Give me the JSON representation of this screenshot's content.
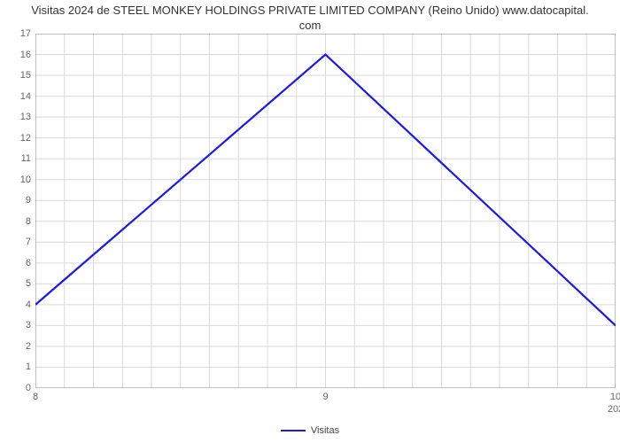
{
  "title_line1": "Visitas 2024 de STEEL MONKEY HOLDINGS PRIVATE LIMITED COMPANY (Reino Unido) www.datocapital.",
  "title_line2": "com",
  "chart": {
    "type": "line",
    "series": {
      "name": "Visitas",
      "color": "#1a1aee",
      "line_width": 2.2,
      "x": [
        8,
        9,
        10
      ],
      "y": [
        4,
        16,
        3
      ]
    },
    "y_axis": {
      "min": 0,
      "max": 17,
      "step": 1,
      "ticks": [
        0,
        1,
        2,
        3,
        4,
        5,
        6,
        7,
        8,
        9,
        10,
        11,
        12,
        13,
        14,
        15,
        16,
        17
      ],
      "grid_color": "#d9d9d9",
      "label_color": "#666666",
      "label_fontsize": 11
    },
    "x_axis": {
      "min": 8,
      "max": 10,
      "ticks": [
        8,
        9,
        10
      ],
      "sublabel_right": "202",
      "minor_grid_count_between": 10,
      "grid_color": "#d9d9d9",
      "label_color": "#666666",
      "label_fontsize": 11
    },
    "border_color": "#808080",
    "background_color": "#ffffff"
  },
  "legend": {
    "label": "Visitas"
  }
}
